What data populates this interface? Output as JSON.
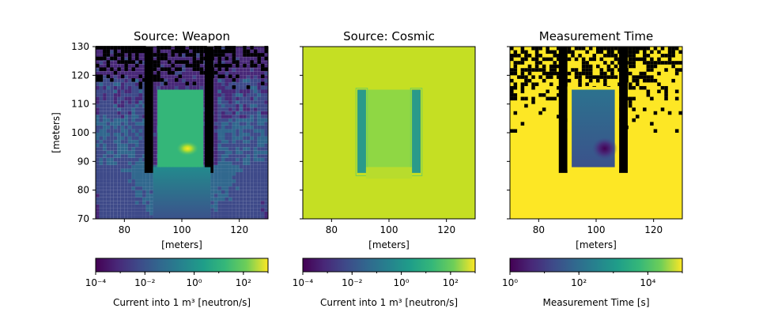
{
  "chart_data": [
    {
      "type": "heatmap",
      "title": "Source: Weapon",
      "xlabel": "[meters]",
      "ylabel": "[meters]",
      "xlim": [
        70,
        130
      ],
      "ylim": [
        70,
        130
      ],
      "xticks": [
        "80",
        "100",
        "120"
      ],
      "yticks": [
        "70",
        "80",
        "90",
        "100",
        "110",
        "120",
        "130"
      ],
      "colorbar": {
        "scale": "log",
        "range": [
          0.0001,
          1000
        ],
        "ticks": [
          "10⁻⁴",
          "10⁻²",
          "10⁰",
          "10²"
        ],
        "label": "Current into 1 m³ [neutron/s]",
        "colormap": "viridis"
      }
    },
    {
      "type": "heatmap",
      "title": "Source: Cosmic",
      "xlabel": "[meters]",
      "ylabel": "",
      "xlim": [
        70,
        130
      ],
      "ylim": [
        70,
        130
      ],
      "xticks": [
        "80",
        "100",
        "120"
      ],
      "colorbar": {
        "scale": "log",
        "range": [
          0.0001,
          1000
        ],
        "ticks": [
          "10⁻⁴",
          "10⁻²",
          "10⁰",
          "10²"
        ],
        "label": "Current into 1 m³ [neutron/s]",
        "colormap": "viridis"
      }
    },
    {
      "type": "heatmap",
      "title": "Measurement Time",
      "xlabel": "[meters]",
      "ylabel": "",
      "xlim": [
        70,
        130
      ],
      "ylim": [
        70,
        130
      ],
      "xticks": [
        "80",
        "100",
        "120"
      ],
      "colorbar": {
        "scale": "log",
        "range": [
          1,
          100000
        ],
        "ticks": [
          "10⁰",
          "10²",
          "10⁴"
        ],
        "label": "Measurement Time [s]",
        "colormap": "viridis"
      }
    }
  ],
  "colors": {
    "viridis_dark": "#440154",
    "viridis_blue": "#3b528b",
    "viridis_teal": "#21918c",
    "viridis_green": "#5ec962",
    "viridis_yellow": "#fde725",
    "mask": "#000000"
  }
}
